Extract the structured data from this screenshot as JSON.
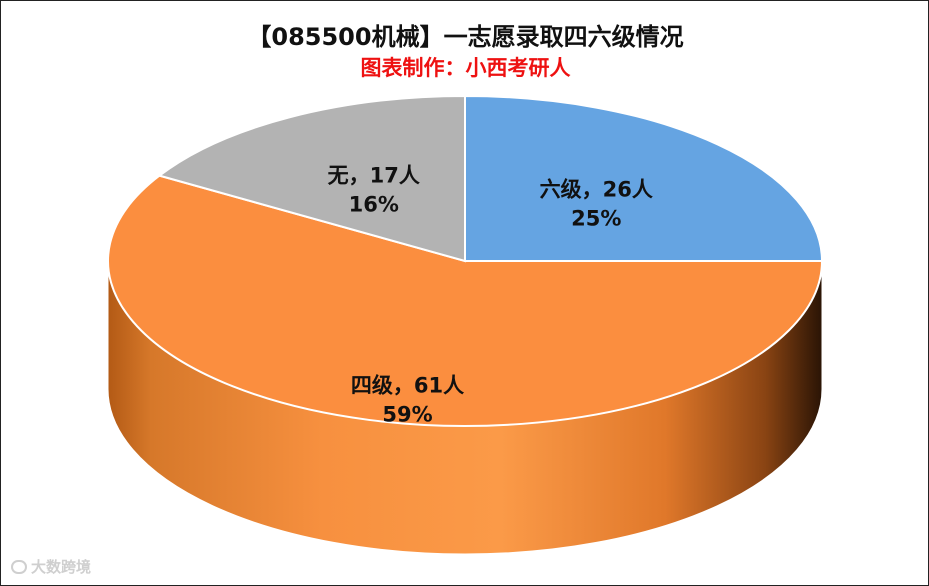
{
  "chart_data": {
    "type": "pie",
    "title": "【085500机械】一志愿录取四六级情况",
    "subtitle": "图表制作：小西考研人",
    "subtitle_color": "#ee1111",
    "slices": [
      {
        "label": "六级",
        "count": "26人",
        "percent": "25%",
        "value": 26,
        "color": "#65a4e2"
      },
      {
        "label": "四级",
        "count": "61人",
        "percent": "59%",
        "value": 61,
        "color": "#fb8e3f"
      },
      {
        "label": "无",
        "count": "17人",
        "percent": "16%",
        "value": 17,
        "color": "#b3b3b3"
      }
    ]
  },
  "watermark": {
    "text": "大数跨境"
  }
}
